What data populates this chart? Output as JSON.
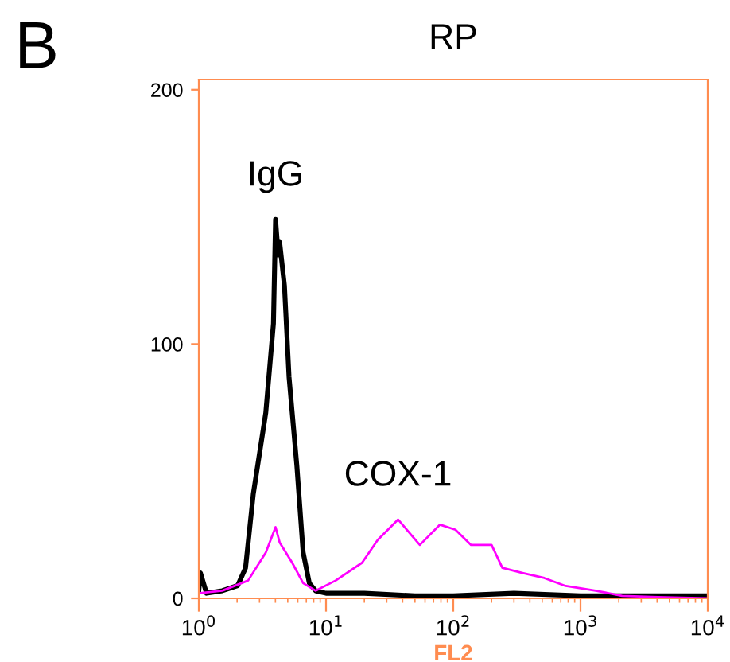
{
  "chart_data": {
    "type": "line",
    "title": "RP",
    "xlabel": "FL2",
    "annotations": [
      "B"
    ],
    "log": "x",
    "grid": false,
    "legend": false,
    "marker": "none",
    "line_style": "solid",
    "xlim": [
      1,
      10000
    ],
    "xticks": [
      {
        "value": 1,
        "label": "10$^{0}$"
      },
      {
        "value": 10,
        "label": "10$^{1}$"
      },
      {
        "value": 100,
        "label": "10$^{2}$"
      },
      {
        "value": 1000,
        "label": "10$^{3}$"
      },
      {
        "value": 10000,
        "label": "10$^{4}$"
      }
    ],
    "ylim": [
      0,
      204
    ],
    "yticks": [
      0,
      100,
      200
    ],
    "series": [
      {
        "name": "IgG",
        "color": "#000000",
        "x": [
          1.0,
          1.03,
          1.15,
          1.53,
          2.02,
          2.33,
          2.68,
          3.36,
          3.86,
          4.01,
          4.21,
          4.32,
          4.71,
          5.12,
          5.9,
          6.61,
          7.39,
          8.27,
          10,
          20,
          50,
          100,
          300,
          1000,
          10000
        ],
        "values": [
          3,
          10,
          2,
          3,
          5,
          12,
          41,
          73,
          108,
          149,
          135,
          140,
          123,
          87,
          52,
          18,
          6,
          3,
          2,
          2,
          1,
          1,
          2,
          1,
          1
        ]
      },
      {
        "name": "COX-1",
        "color": "#ff00ff",
        "x": [
          1.0,
          1.53,
          2.44,
          3.36,
          4.01,
          4.32,
          5.42,
          6.61,
          8.27,
          11.9,
          19.2,
          25.5,
          36.8,
          54.6,
          78.7,
          104,
          138,
          200,
          243,
          350,
          519,
          750,
          1315,
          2124,
          4060,
          10000
        ],
        "values": [
          2,
          3,
          7,
          18,
          28,
          22,
          14,
          6,
          3,
          7,
          14,
          23,
          31,
          21,
          29,
          27,
          21,
          21,
          12,
          10,
          8,
          5,
          3,
          1,
          0.5,
          0
        ]
      }
    ]
  }
}
